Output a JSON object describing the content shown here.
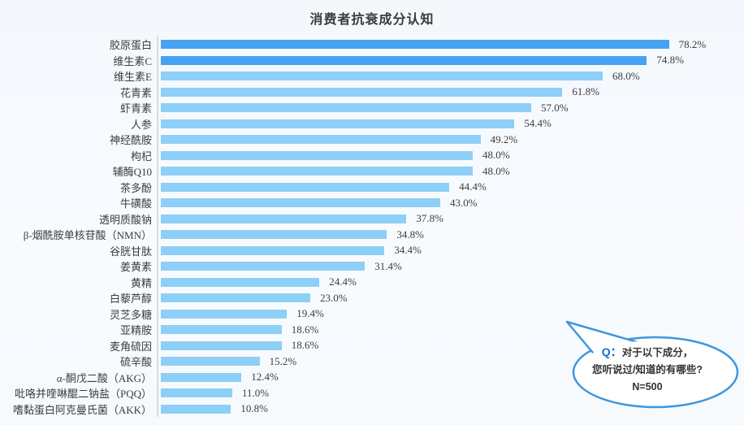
{
  "title": "消费者抗衰成分认知",
  "chart_data": {
    "type": "bar",
    "orientation": "horizontal",
    "title": "消费者抗衰成分认知",
    "categories": [
      "胶原蛋白",
      "维生素C",
      "维生素E",
      "花青素",
      "虾青素",
      "人参",
      "神经酰胺",
      "枸杞",
      "辅酶Q10",
      "茶多酚",
      "牛磺酸",
      "透明质酸钠",
      "β-烟酰胺单核苷酸（NMN）",
      "谷胱甘肽",
      "姜黄素",
      "黄精",
      "白藜芦醇",
      "灵芝多糖",
      "亚精胺",
      "麦角硫因",
      "硫辛酸",
      "α-酮戊二酸（AKG）",
      "吡咯并喹啉醌二钠盐（PQQ）",
      "嗜黏蛋白阿克曼氏菌（AKK）"
    ],
    "values": [
      78.2,
      74.8,
      68.0,
      61.8,
      57.0,
      54.4,
      49.2,
      48.0,
      48.0,
      44.4,
      43.0,
      37.8,
      34.8,
      34.4,
      31.4,
      24.4,
      23.0,
      19.4,
      18.6,
      18.6,
      15.2,
      12.4,
      11.0,
      10.8
    ],
    "value_suffix": "%",
    "xlim": [
      0,
      80
    ],
    "grid": false,
    "legend": false,
    "highlight_count": 2
  },
  "colors": {
    "bar_highlight": "#45a3f1",
    "bar_default": "#8dcff7",
    "axis_line": "#d9dde1",
    "text": "#3d3d3d",
    "background": "#f6fafd",
    "callout_border": "#3e96dc",
    "q_label_color": "#0f6fd4"
  },
  "callout": {
    "q_label": "Q：",
    "line1": "对于以下成分，",
    "line2": "您听说过/知道的有哪些?",
    "line3": "N=500"
  }
}
